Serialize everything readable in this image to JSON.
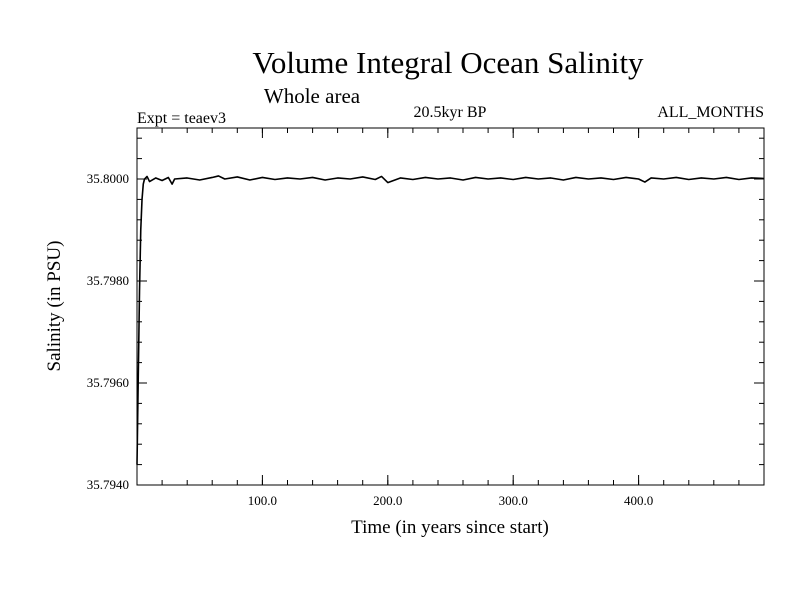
{
  "chart_data": {
    "type": "line",
    "title": "Volume Integral Ocean Salinity",
    "subtitle": "Whole area",
    "header_left": "Expt = teaev3",
    "header_center": "20.5kyr BP",
    "header_right": "ALL_MONTHS",
    "xlabel": "Time (in years since start)",
    "ylabel": "Salinity (in PSU)",
    "xlim": [
      0,
      500
    ],
    "ylim": [
      35.794,
      35.801
    ],
    "x_ticks": [
      {
        "value": 100,
        "label": "100.0"
      },
      {
        "value": 200,
        "label": "200.0"
      },
      {
        "value": 300,
        "label": "300.0"
      },
      {
        "value": 400,
        "label": "400.0"
      }
    ],
    "y_ticks": [
      {
        "value": 35.794,
        "label": "35.7940"
      },
      {
        "value": 35.796,
        "label": "35.7960"
      },
      {
        "value": 35.798,
        "label": "35.7980"
      },
      {
        "value": 35.8,
        "label": "35.8000"
      }
    ],
    "x_minor_step": 20,
    "y_minor_step": 0.0004,
    "grid": false,
    "legend": "none",
    "series": [
      {
        "name": "teaev3",
        "x": [
          0,
          1,
          2,
          3,
          4,
          5,
          6,
          8,
          10,
          15,
          20,
          25,
          28,
          30,
          40,
          50,
          60,
          65,
          70,
          80,
          90,
          100,
          110,
          120,
          130,
          140,
          150,
          160,
          170,
          180,
          190,
          195,
          200,
          210,
          220,
          230,
          240,
          250,
          260,
          270,
          280,
          290,
          300,
          310,
          320,
          330,
          340,
          350,
          360,
          370,
          380,
          390,
          400,
          405,
          410,
          420,
          430,
          440,
          450,
          460,
          470,
          480,
          490,
          500
        ],
        "values": [
          35.7944,
          35.7961,
          35.7978,
          35.799,
          35.7996,
          35.7999,
          35.8,
          35.80005,
          35.79995,
          35.80002,
          35.79997,
          35.80003,
          35.7999,
          35.8,
          35.80002,
          35.79998,
          35.80003,
          35.80006,
          35.8,
          35.80004,
          35.79998,
          35.80003,
          35.79999,
          35.80002,
          35.8,
          35.80003,
          35.79998,
          35.80002,
          35.8,
          35.80004,
          35.79999,
          35.80005,
          35.79993,
          35.80002,
          35.79999,
          35.80003,
          35.8,
          35.80002,
          35.79998,
          35.80003,
          35.8,
          35.80002,
          35.79999,
          35.80003,
          35.8,
          35.80002,
          35.79998,
          35.80003,
          35.8,
          35.80002,
          35.79999,
          35.80003,
          35.8,
          35.79994,
          35.80002,
          35.8,
          35.80003,
          35.79999,
          35.80002,
          35.8,
          35.80003,
          35.79999,
          35.80002,
          35.80001
        ]
      }
    ]
  }
}
